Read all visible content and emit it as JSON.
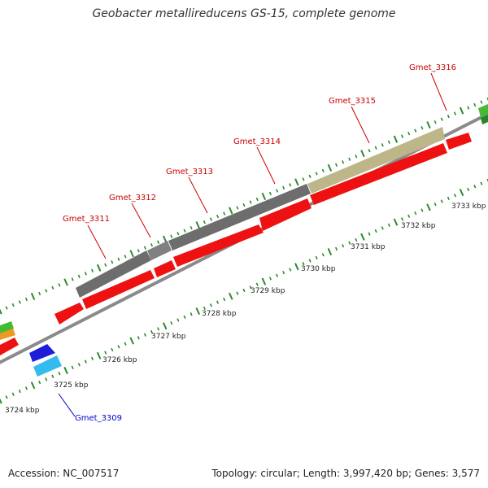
{
  "title": "Geobacter metallireducens GS-15, complete genome",
  "footer": {
    "accession": "Accession: NC_007517",
    "summary": "Topology: circular; Length: 3,997,420 bp; Genes: 3,577"
  },
  "colors": {
    "forward_gene": "#ee1111",
    "gray_feature": "#6e6e6e",
    "khaki_feature": "#bdb78a",
    "backbone": "#888888",
    "tick": "#2a8a2a",
    "label_red": "#cc0000",
    "label_blue": "#0000cc",
    "blue_gene": "#1e1ed8",
    "cyan_gene": "#33bbee",
    "green_gene": "#44bb33",
    "orange_gene": "#ee9922"
  },
  "scale_labels": [
    "3724 kbp",
    "3725 kbp",
    "3726 kbp",
    "3727 kbp",
    "3728 kbp",
    "3729 kbp",
    "3730 kbp",
    "3731 kbp",
    "3732 kbp",
    "3733 kbp"
  ],
  "gene_labels": [
    {
      "name": "Gmet_3309",
      "color": "blue"
    },
    {
      "name": "Gmet_3311",
      "color": "red"
    },
    {
      "name": "Gmet_3312",
      "color": "red"
    },
    {
      "name": "Gmet_3313",
      "color": "red"
    },
    {
      "name": "Gmet_3314",
      "color": "red"
    },
    {
      "name": "Gmet_3315",
      "color": "red"
    },
    {
      "name": "Gmet_3316",
      "color": "red"
    }
  ]
}
